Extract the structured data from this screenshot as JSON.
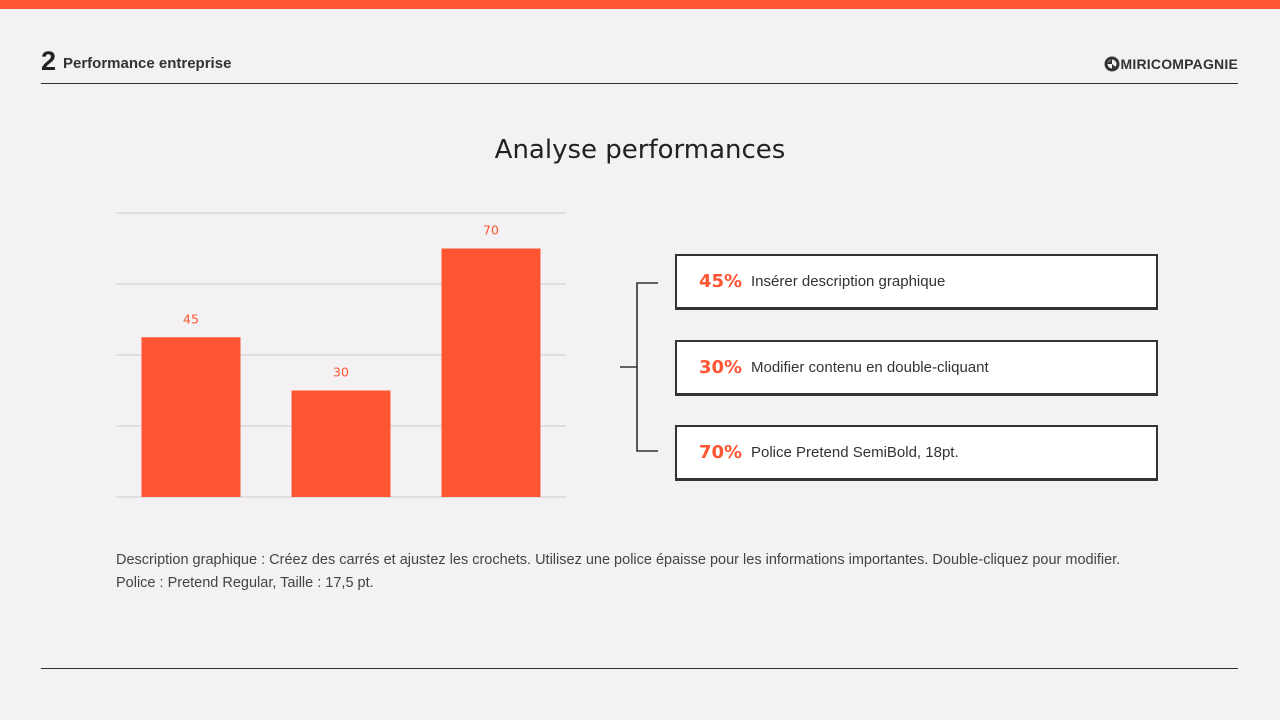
{
  "theme": {
    "accent": "#ff5533",
    "dark": "#333333",
    "grid": "#cccccc"
  },
  "header": {
    "section_number": "2",
    "section_title": "Performance entreprise",
    "logo_text": "MIRICOMPAGNIE",
    "logo_icon": "logo-mark-icon"
  },
  "slide_title": "Analyse performances",
  "chart_data": {
    "type": "bar",
    "title": "",
    "xlabel": "",
    "ylabel": "",
    "categories": [
      "",
      "",
      ""
    ],
    "values": [
      45,
      30,
      70
    ],
    "data_labels": [
      "45",
      "30",
      "70"
    ],
    "ylim": [
      0,
      80
    ],
    "grid": true,
    "bar_color": "#ff5533"
  },
  "legend_items": [
    {
      "pct": "45%",
      "text": "Insérer description graphique"
    },
    {
      "pct": "30%",
      "text": "Modifier contenu en double-cliquant"
    },
    {
      "pct": "70%",
      "text": "Police Pretend SemiBold, 18pt."
    }
  ],
  "description": "Description graphique : Créez des carrés et ajustez les crochets. Utilisez une police épaisse pour les informations importantes. Double-cliquez pour modifier. Police : Pretend Regular, Taille : 17,5 pt."
}
